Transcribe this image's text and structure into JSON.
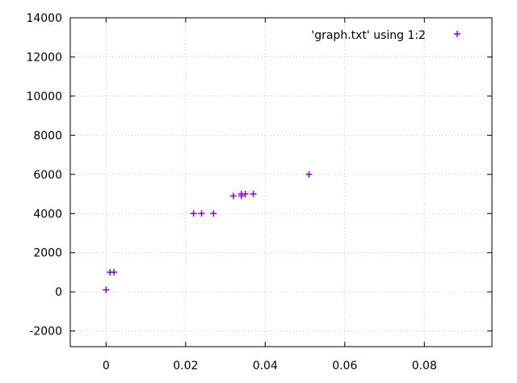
{
  "chart_data": {
    "type": "scatter",
    "series": [
      {
        "name": "'graph.txt' using 1:2",
        "marker": "+",
        "color": "#9400d3",
        "points": [
          [
            0.0,
            100
          ],
          [
            0.001,
            1000
          ],
          [
            0.002,
            1000
          ],
          [
            0.022,
            4000
          ],
          [
            0.024,
            4000
          ],
          [
            0.027,
            4000
          ],
          [
            0.032,
            4900
          ],
          [
            0.034,
            4900
          ],
          [
            0.034,
            5000
          ],
          [
            0.035,
            5000
          ],
          [
            0.037,
            5000
          ],
          [
            0.051,
            6000
          ]
        ]
      }
    ],
    "xlim": [
      -0.009,
      0.097
    ],
    "ylim": [
      -2800,
      14000
    ],
    "xticks": [
      0,
      0.02,
      0.04,
      0.06,
      0.08
    ],
    "xtick_labels": [
      "0",
      "0.02",
      "0.04",
      "0.06",
      "0.08"
    ],
    "yticks": [
      -2000,
      0,
      2000,
      4000,
      6000,
      8000,
      10000,
      12000,
      14000
    ],
    "ytick_labels": [
      "-2000",
      "0",
      "2000",
      "4000",
      "6000",
      "8000",
      "10000",
      "12000",
      "14000"
    ],
    "grid": true,
    "legend_position": "top-right",
    "title": "",
    "xlabel": "",
    "ylabel": ""
  }
}
